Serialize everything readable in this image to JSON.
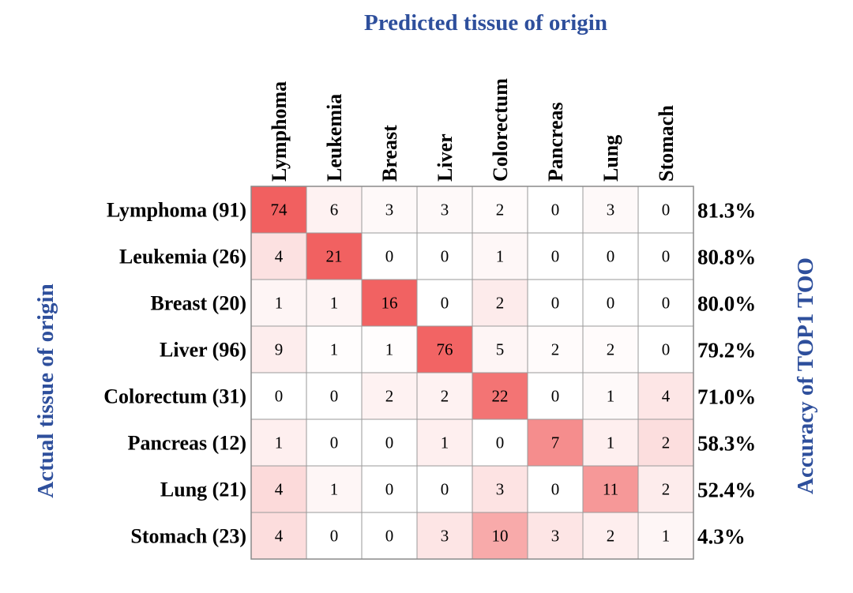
{
  "chart_data": {
    "type": "heatmap",
    "title": "Predicted tissue of origin",
    "xlabel": "Predicted tissue of origin",
    "ylabel": "Actual tissue of origin",
    "right_label": "Accuracy of  TOP1 TOO",
    "columns": [
      "Lymphoma",
      "Leukemia",
      "Breast",
      "Liver",
      "Colorectum",
      "Pancreas",
      "Lung",
      "Stomach"
    ],
    "rows": [
      "Lymphoma (91)",
      "Leukemia (26)",
      "Breast (20)",
      "Liver (96)",
      "Colorectum (31)",
      "Pancreas (12)",
      "Lung (21)",
      "Stomach (23)"
    ],
    "values": [
      [
        74,
        6,
        3,
        3,
        2,
        0,
        3,
        0
      ],
      [
        4,
        21,
        0,
        0,
        1,
        0,
        0,
        0
      ],
      [
        1,
        1,
        16,
        0,
        2,
        0,
        0,
        0
      ],
      [
        9,
        1,
        1,
        76,
        5,
        2,
        2,
        0
      ],
      [
        0,
        0,
        2,
        2,
        22,
        0,
        1,
        4
      ],
      [
        1,
        0,
        0,
        1,
        0,
        7,
        1,
        2
      ],
      [
        4,
        1,
        0,
        0,
        3,
        0,
        11,
        2
      ],
      [
        4,
        0,
        0,
        3,
        10,
        3,
        2,
        1
      ]
    ],
    "accuracy": [
      "81.3%",
      "80.8%",
      "80.0%",
      "79.2%",
      "71.0%",
      "58.3%",
      "52.4%",
      "4.3%"
    ],
    "colors": {
      "high": "#ee3b3b",
      "low": "#ffffff",
      "title": "#2e4f9c"
    }
  }
}
